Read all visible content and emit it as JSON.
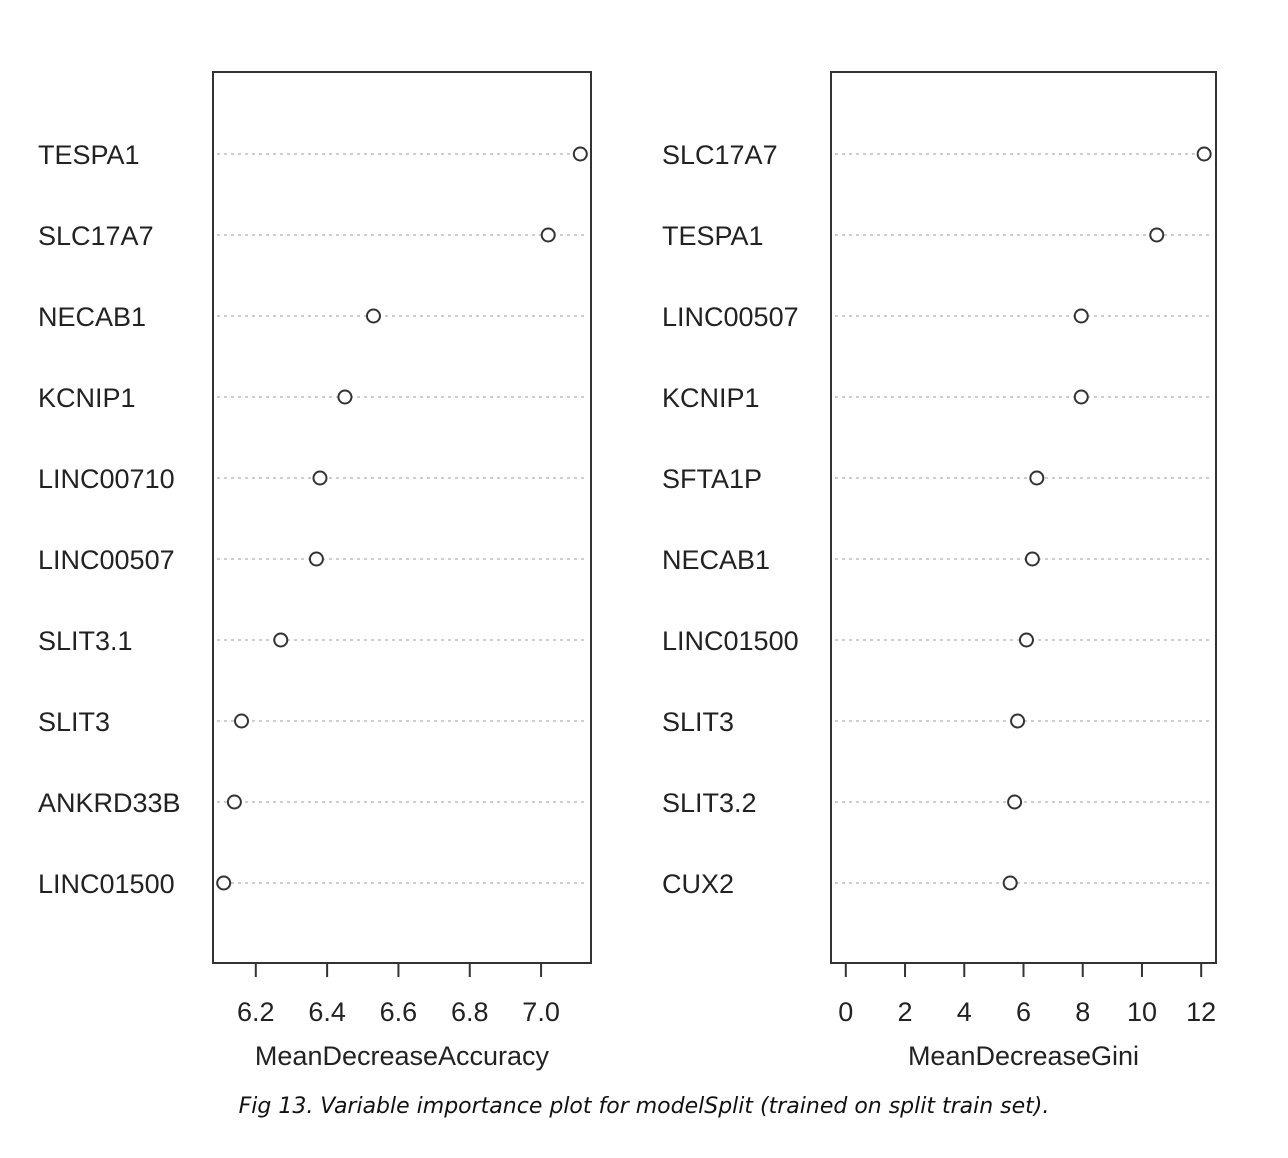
{
  "caption": "Fig 13. Variable importance plot for modelSplit (trained on split train set).",
  "chart_data": [
    {
      "type": "scatter",
      "style": "dot-chart",
      "xlabel": "MeanDecreaseAccuracy",
      "xlim": [
        6.08,
        7.14
      ],
      "ticks": [
        6.2,
        6.4,
        6.6,
        6.8,
        7.0
      ],
      "tick_labels": [
        "6.2",
        "6.4",
        "6.6",
        "6.8",
        "7.0"
      ],
      "grid": "dotted horizontal guides",
      "categories": [
        "TESPA1",
        "SLC17A7",
        "NECAB1",
        "KCNIP1",
        "LINC00710",
        "LINC00507",
        "SLIT3.1",
        "SLIT3",
        "ANKRD33B",
        "LINC01500"
      ],
      "values": [
        7.11,
        7.02,
        6.53,
        6.45,
        6.38,
        6.37,
        6.27,
        6.16,
        6.14,
        6.11
      ]
    },
    {
      "type": "scatter",
      "style": "dot-chart",
      "xlabel": "MeanDecreaseGini",
      "xlim": [
        -0.5,
        12.5
      ],
      "ticks": [
        0,
        2,
        4,
        6,
        8,
        10,
        12
      ],
      "tick_labels": [
        "0",
        "2",
        "4",
        "6",
        "8",
        "10",
        "12"
      ],
      "grid": "dotted horizontal guides",
      "categories": [
        "SLC17A7",
        "TESPA1",
        "LINC00507",
        "KCNIP1",
        "SFTA1P",
        "NECAB1",
        "LINC01500",
        "SLIT3",
        "SLIT3.2",
        "CUX2"
      ],
      "values": [
        12.1,
        10.5,
        7.95,
        7.95,
        6.45,
        6.3,
        6.1,
        5.8,
        5.7,
        5.55
      ]
    }
  ]
}
